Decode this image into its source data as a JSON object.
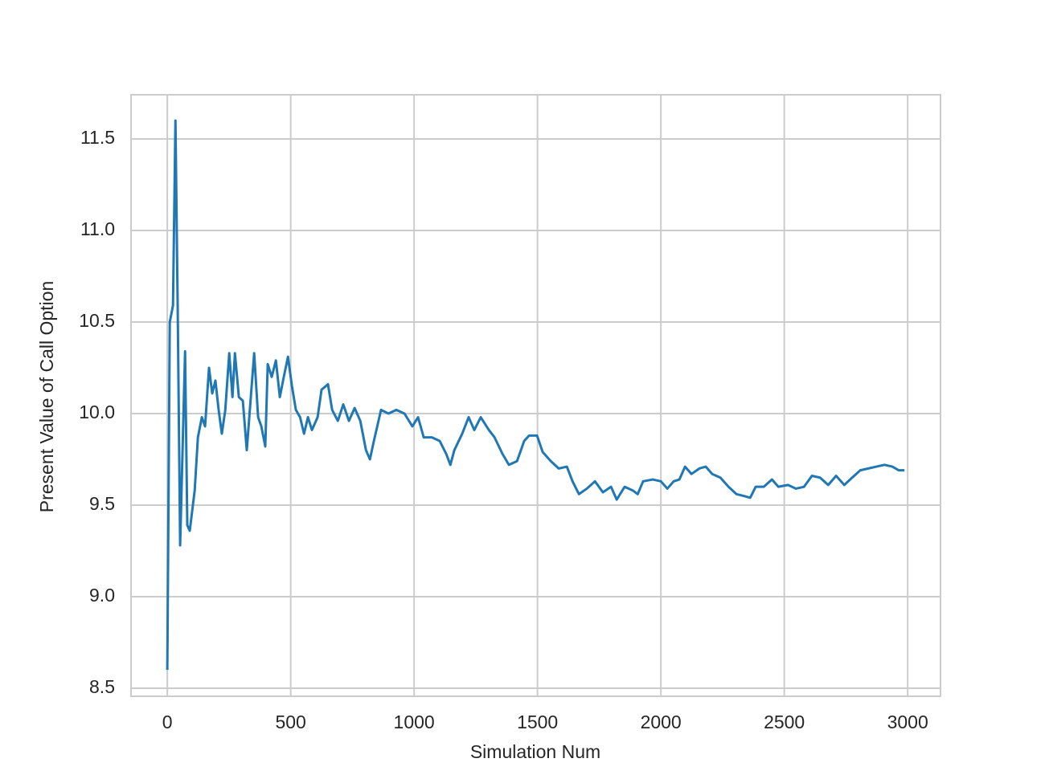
{
  "chart_data": {
    "type": "line",
    "xlabel": "Simulation Num",
    "ylabel": "Present Value of Call Option",
    "color": "#1f77b4",
    "grid": true,
    "xlim": [
      -147,
      3133
    ],
    "ylim": [
      8.456,
      11.741
    ],
    "xticks": [
      0,
      500,
      1000,
      1500,
      2000,
      2500,
      3000
    ],
    "yticks": [
      8.5,
      {
        "value": 9,
        "label": "9.0"
      },
      9.5,
      {
        "value": 10,
        "label": "10.0"
      },
      10.5,
      {
        "value": 11,
        "label": "11.0"
      },
      11.5
    ],
    "x": [
      0,
      10,
      23,
      33,
      42,
      52,
      72,
      81,
      91,
      111,
      124,
      140,
      153,
      169,
      182,
      195,
      208,
      221,
      235,
      251,
      264,
      274,
      290,
      306,
      322,
      352,
      368,
      381,
      397,
      407,
      423,
      440,
      456,
      472,
      489,
      505,
      521,
      538,
      554,
      570,
      586,
      609,
      625,
      651,
      668,
      691,
      713,
      736,
      759,
      782,
      805,
      821,
      837,
      866,
      896,
      928,
      961,
      993,
      1016,
      1039,
      1072,
      1104,
      1130,
      1147,
      1163,
      1195,
      1221,
      1244,
      1270,
      1303,
      1326,
      1358,
      1384,
      1417,
      1446,
      1466,
      1498,
      1521,
      1554,
      1586,
      1619,
      1642,
      1668,
      1700,
      1733,
      1765,
      1798,
      1821,
      1853,
      1886,
      1906,
      1928,
      1967,
      2000,
      2026,
      2052,
      2075,
      2098,
      2124,
      2156,
      2182,
      2208,
      2241,
      2274,
      2306,
      2336,
      2362,
      2384,
      2417,
      2450,
      2476,
      2515,
      2547,
      2580,
      2612,
      2645,
      2678,
      2710,
      2743,
      2775,
      2808,
      2840,
      2873,
      2906,
      2938,
      2964,
      2987
    ],
    "values": [
      8.6,
      10.5,
      10.59,
      11.6,
      10.59,
      9.28,
      10.34,
      9.39,
      9.36,
      9.58,
      9.87,
      9.98,
      9.93,
      10.25,
      10.11,
      10.18,
      10.02,
      9.89,
      10.02,
      10.33,
      10.09,
      10.33,
      10.09,
      10.07,
      9.8,
      10.33,
      9.98,
      9.93,
      9.82,
      10.27,
      10.2,
      10.29,
      10.09,
      10.2,
      10.31,
      10.15,
      10.02,
      9.98,
      9.89,
      9.98,
      9.91,
      9.98,
      10.13,
      10.16,
      10.02,
      9.96,
      10.05,
      9.96,
      10.03,
      9.96,
      9.8,
      9.75,
      9.85,
      10.02,
      10.0,
      10.02,
      10.0,
      9.93,
      9.98,
      9.87,
      9.87,
      9.85,
      9.78,
      9.72,
      9.8,
      9.89,
      9.98,
      9.91,
      9.98,
      9.91,
      9.87,
      9.78,
      9.72,
      9.74,
      9.85,
      9.88,
      9.88,
      9.79,
      9.74,
      9.7,
      9.71,
      9.63,
      9.56,
      9.59,
      9.63,
      9.57,
      9.6,
      9.53,
      9.6,
      9.58,
      9.56,
      9.63,
      9.64,
      9.63,
      9.59,
      9.63,
      9.64,
      9.71,
      9.67,
      9.7,
      9.71,
      9.67,
      9.65,
      9.6,
      9.56,
      9.55,
      9.54,
      9.6,
      9.6,
      9.64,
      9.6,
      9.61,
      9.59,
      9.6,
      9.66,
      9.65,
      9.61,
      9.66,
      9.61,
      9.65,
      9.69,
      9.7,
      9.71,
      9.72,
      9.71,
      9.69,
      9.69
    ]
  }
}
